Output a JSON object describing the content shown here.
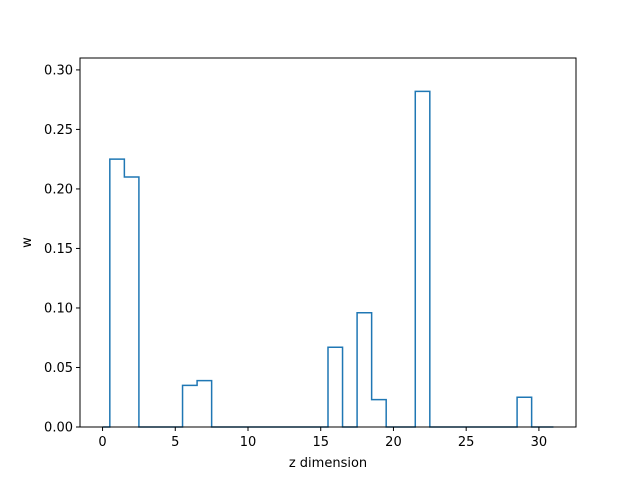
{
  "chart_data": {
    "type": "bar",
    "style": "step-histogram",
    "xlabel": "z dimension",
    "ylabel": "w",
    "xlim": [
      -1.55,
      32.55
    ],
    "ylim": [
      0,
      0.31
    ],
    "x_ticks": [
      0,
      5,
      10,
      15,
      20,
      25,
      30
    ],
    "y_ticks": [
      0.0,
      0.05,
      0.1,
      0.15,
      0.2,
      0.25,
      0.3
    ],
    "y_tick_labels": [
      "0.00",
      "0.05",
      "0.10",
      "0.15",
      "0.20",
      "0.25",
      "0.30"
    ],
    "categories": [
      0,
      1,
      2,
      3,
      4,
      5,
      6,
      7,
      8,
      9,
      10,
      11,
      12,
      13,
      14,
      15,
      16,
      17,
      18,
      19,
      20,
      21,
      22,
      23,
      24,
      25,
      26,
      27,
      28,
      29,
      30,
      31
    ],
    "values": [
      0,
      0.225,
      0.21,
      0,
      0,
      0,
      0.035,
      0.039,
      0,
      0,
      0,
      0,
      0,
      0,
      0,
      0,
      0.067,
      0,
      0.096,
      0.023,
      0,
      0,
      0.282,
      0,
      0,
      0,
      0,
      0,
      0,
      0.025,
      0,
      0
    ],
    "grid": false,
    "line_color": "#1f77b4"
  }
}
